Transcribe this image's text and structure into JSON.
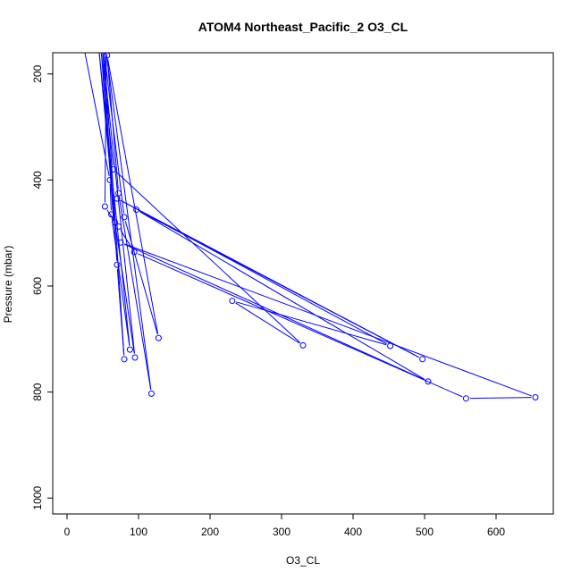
{
  "chart_data": {
    "type": "line",
    "title": "ATOM4 Northeast_Pacific_2 O3_CL",
    "xlabel": "O3_CL",
    "ylabel": "Pressure (mbar)",
    "xlim": [
      -20,
      680
    ],
    "ylim": [
      1030,
      160
    ],
    "y_reversed": true,
    "grid": false,
    "legend": "none",
    "x_ticks": [
      0,
      100,
      200,
      300,
      400,
      500,
      600
    ],
    "y_ticks": [
      200,
      400,
      600,
      800,
      1000
    ],
    "series": [
      {
        "color": "#0000ff",
        "marker": "open-circle",
        "points": [
          {
            "x": 25,
            "y": 160,
            "m": false
          },
          {
            "x": 60,
            "y": 400,
            "m": true
          },
          {
            "x": 62,
            "y": 465,
            "m": true
          },
          {
            "x": 88,
            "y": 720,
            "m": true
          },
          {
            "x": 45,
            "y": 160,
            "m": false
          },
          {
            "x": 67,
            "y": 480,
            "m": true
          },
          {
            "x": 95,
            "y": 735,
            "m": true
          },
          {
            "x": 50,
            "y": 160,
            "m": false
          },
          {
            "x": 70,
            "y": 560,
            "m": true
          },
          {
            "x": 80,
            "y": 738,
            "m": true
          },
          {
            "x": 52,
            "y": 160,
            "m": false
          },
          {
            "x": 80,
            "y": 470,
            "m": true
          },
          {
            "x": 128,
            "y": 698,
            "m": true
          },
          {
            "x": 56,
            "y": 165,
            "m": true
          },
          {
            "x": 72,
            "y": 425,
            "m": true
          },
          {
            "x": 118,
            "y": 803,
            "m": true
          },
          {
            "x": 55,
            "y": 160,
            "m": false
          },
          {
            "x": 53,
            "y": 450,
            "m": true
          },
          {
            "x": 65,
            "y": 475,
            "m": false
          },
          {
            "x": 48,
            "y": 160,
            "m": false
          },
          {
            "x": 65,
            "y": 380,
            "m": true
          },
          {
            "x": 330,
            "y": 712,
            "m": true
          },
          {
            "x": 231,
            "y": 628,
            "m": true
          },
          {
            "x": 452,
            "y": 713,
            "m": true
          },
          {
            "x": 70,
            "y": 435,
            "m": true
          },
          {
            "x": 497,
            "y": 738,
            "m": true
          },
          {
            "x": 97,
            "y": 456,
            "m": true
          },
          {
            "x": 505,
            "y": 780,
            "m": true
          },
          {
            "x": 75,
            "y": 518,
            "m": true
          },
          {
            "x": 655,
            "y": 810,
            "m": true
          },
          {
            "x": 558,
            "y": 812,
            "m": true
          },
          {
            "x": 94,
            "y": 536,
            "m": true
          },
          {
            "x": 72,
            "y": 488,
            "m": true
          }
        ]
      }
    ]
  }
}
